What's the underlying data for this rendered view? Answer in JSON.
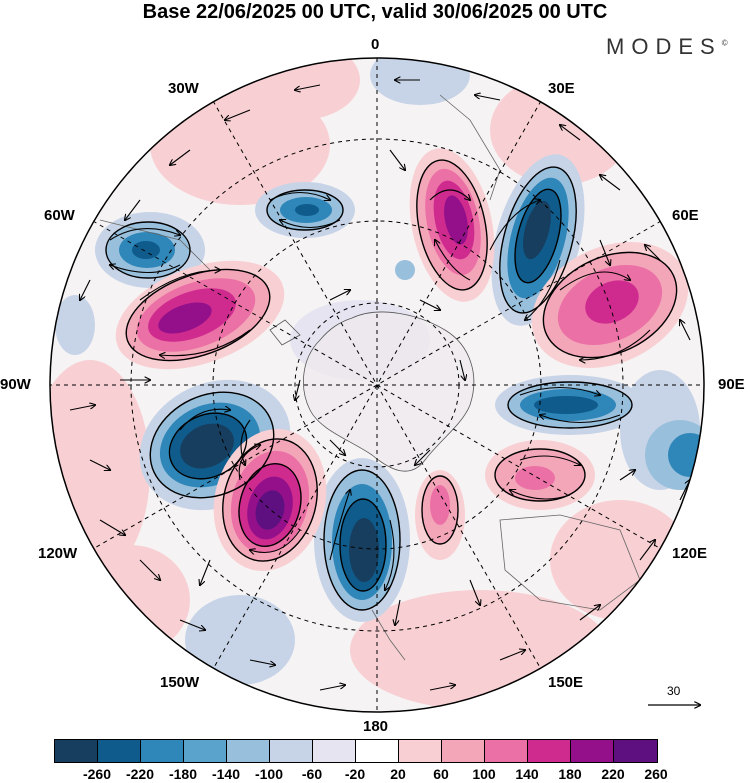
{
  "title": "Base 22/06/2025 00 UTC, valid 30/06/2025 00 UTC",
  "brand": "MODES",
  "brand_mark": "©",
  "longitude_labels": {
    "lon_0": "0",
    "lon_30e": "30E",
    "lon_60e": "60E",
    "lon_90e": "90E",
    "lon_120e": "120E",
    "lon_150e": "150E",
    "lon_180": "180",
    "lon_150w": "150W",
    "lon_120w": "120W",
    "lon_90w": "90W",
    "lon_60w": "60W",
    "lon_30w": "30W"
  },
  "vector_scale_label": "30",
  "colorbar": {
    "colors": [
      "#173e5e",
      "#0f5c8c",
      "#2f86b8",
      "#5aa3cc",
      "#98bfdc",
      "#c7d4e7",
      "#e6e4f0",
      "#ffffff",
      "#f8d0d3",
      "#f4a6b9",
      "#eb70a5",
      "#cf2b8f",
      "#94108a",
      "#5e1080"
    ],
    "tick_labels": [
      "-260",
      "-220",
      "-180",
      "-140",
      "-100",
      "-60",
      "-20",
      "20",
      "60",
      "100",
      "140",
      "180",
      "220",
      "260"
    ]
  },
  "anomaly_centers": [
    {
      "sign": "negative",
      "level": -260
    },
    {
      "sign": "negative",
      "level": -260
    },
    {
      "sign": "negative",
      "level": -260
    },
    {
      "sign": "negative",
      "level": -220
    },
    {
      "sign": "negative",
      "level": -180
    },
    {
      "sign": "negative",
      "level": -180
    },
    {
      "sign": "positive",
      "level": 260
    },
    {
      "sign": "positive",
      "level": 220
    },
    {
      "sign": "positive",
      "level": 220
    },
    {
      "sign": "positive",
      "level": 180
    },
    {
      "sign": "positive",
      "level": 140
    },
    {
      "sign": "positive",
      "level": 100
    }
  ]
}
